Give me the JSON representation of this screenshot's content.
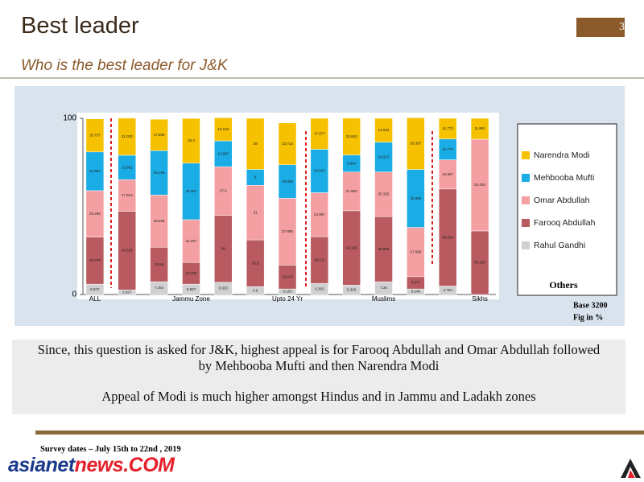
{
  "header": {
    "title": "Best leader",
    "page_number": "3",
    "subtitle": "Who is the best leader for J&K"
  },
  "chart_data": {
    "type": "bar",
    "stacked": true,
    "categories": [
      "ALL",
      null,
      null,
      "Jammu Zone",
      null,
      null,
      "Upto 24 Yr",
      null,
      null,
      "Muslims",
      null,
      null,
      "Sikhs"
    ],
    "series": [
      {
        "name": "Narendra Modi",
        "color": "#f5c100",
        "values": [
          18.737,
          21.033,
          17.809,
          25.4,
          13.133,
          29,
          23.714,
          17.577,
          20.863,
          13.534,
          29.337,
          11.773,
          11.891
        ]
      },
      {
        "name": "Mehbooba Mufti",
        "color": "#1aace4",
        "values": [
          21.963,
          13.862,
          25.196,
          32.067,
          14.667,
          9,
          18.989,
          24.642,
          9.684,
          16.913,
          32.883,
          11.773,
          null
        ]
      },
      {
        "name": "Omar Abdullah",
        "color": "#f4a0a3",
        "values": [
          26.298,
          17.913,
          29.629,
          24.267,
          27.6,
          31,
          37.895,
          24.967,
          21.962,
          25.325,
          27.969,
          16.567,
          52.003
        ]
      },
      {
        "name": "Farooq Abdullah",
        "color": "#b85a5f",
        "values": [
          26.778,
          44.635,
          19.56,
          12.333,
          38,
          26.5,
          13.579,
          26.511,
          42.196,
          36.983,
          6.977,
          55.094,
          36.106
        ]
      },
      {
        "name": "Rahul Gandhi",
        "color": "#d0d0d0",
        "values": [
          5.872,
          2.627,
          7.264,
          5.867,
          6.933,
          4.5,
          3.153,
          6.303,
          5.345,
          7.25,
          3.146,
          4.794,
          null
        ]
      }
    ],
    "ylim": [
      0,
      100
    ],
    "yticks": [
      0,
      100
    ],
    "legend_label": "Others",
    "notes": [
      "Base 3200",
      "Fig in %"
    ]
  },
  "summary": [
    "Since, this question is asked for J&K, highest appeal is for Farooq Abdullah and Omar Abdullah followed by Mehbooba Mufti and then Narendra Modi",
    "Appeal of Modi is much higher amongst Hindus and in Jammu and Ladakh zones"
  ],
  "footer": {
    "survey_dates": "Survey dates – July 15th  to 22nd  , 2019",
    "logo": [
      "asianet",
      "news.COM"
    ]
  }
}
